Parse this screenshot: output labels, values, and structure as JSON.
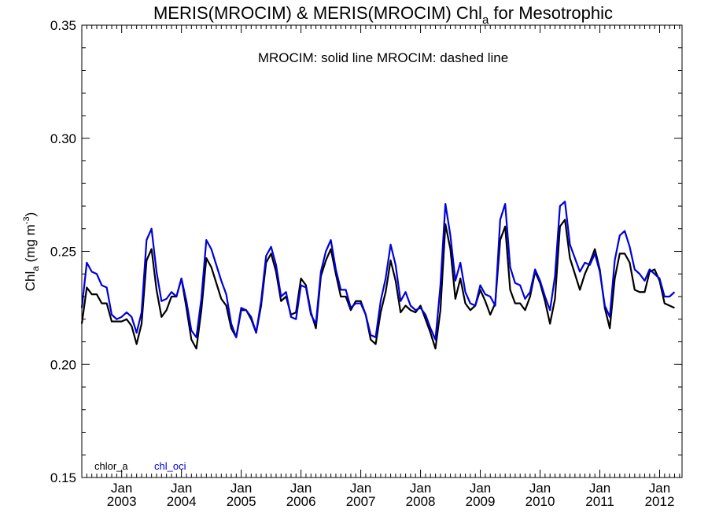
{
  "chart_data": {
    "type": "line",
    "title": {
      "main": "MERIS(MROCIM) & MERIS(MROCIM)  Chl",
      "main_sub": "a",
      "suffix": " for Mesotrophic"
    },
    "annotation": "MROCIM: solid line   MROCIM: dashed line",
    "ylabel": {
      "base": "Chl",
      "base_sub": "a",
      "unit": " (mg m",
      "unit_sup": "-3",
      "close": ")"
    },
    "ylim": [
      0.15,
      0.35
    ],
    "yticks": [
      0.15,
      0.2,
      0.25,
      0.3,
      0.35
    ],
    "ytick_labels": [
      "0.15",
      "0.20",
      "0.25",
      "0.30",
      "0.35"
    ],
    "xlim": [
      2002.333,
      2012.375
    ],
    "xticks": [
      {
        "x": 2003.0,
        "top": "Jan",
        "bottom": "2003"
      },
      {
        "x": 2004.0,
        "top": "Jan",
        "bottom": "2004"
      },
      {
        "x": 2005.0,
        "top": "Jan",
        "bottom": "2005"
      },
      {
        "x": 2006.0,
        "top": "Jan",
        "bottom": "2006"
      },
      {
        "x": 2007.0,
        "top": "Jan",
        "bottom": "2007"
      },
      {
        "x": 2008.0,
        "top": "Jan",
        "bottom": "2008"
      },
      {
        "x": 2009.0,
        "top": "Jan",
        "bottom": "2009"
      },
      {
        "x": 2010.0,
        "top": "Jan",
        "bottom": "2010"
      },
      {
        "x": 2011.0,
        "top": "Jan",
        "bottom": "2011"
      },
      {
        "x": 2012.0,
        "top": "Jan",
        "bottom": "2012"
      }
    ],
    "grid": false,
    "legend_position": "bottom-left",
    "series": [
      {
        "name": "chlor_a",
        "color": "#000000",
        "x_start": 2002.333,
        "x_step": 0.08333,
        "values": [
          0.218,
          0.234,
          0.231,
          0.231,
          0.227,
          0.227,
          0.219,
          0.219,
          0.219,
          0.22,
          0.217,
          0.209,
          0.218,
          0.246,
          0.251,
          0.233,
          0.221,
          0.224,
          0.23,
          0.23,
          0.238,
          0.225,
          0.211,
          0.207,
          0.224,
          0.247,
          0.243,
          0.236,
          0.229,
          0.226,
          0.216,
          0.212,
          0.224,
          0.224,
          0.22,
          0.214,
          0.226,
          0.245,
          0.249,
          0.241,
          0.228,
          0.23,
          0.222,
          0.223,
          0.238,
          0.235,
          0.223,
          0.216,
          0.239,
          0.246,
          0.251,
          0.24,
          0.23,
          0.23,
          0.224,
          0.228,
          0.228,
          0.222,
          0.211,
          0.209,
          0.223,
          0.232,
          0.246,
          0.237,
          0.223,
          0.226,
          0.224,
          0.223,
          0.226,
          0.22,
          0.214,
          0.207,
          0.224,
          0.262,
          0.251,
          0.229,
          0.238,
          0.227,
          0.224,
          0.226,
          0.233,
          0.228,
          0.222,
          0.227,
          0.255,
          0.261,
          0.233,
          0.227,
          0.227,
          0.224,
          0.23,
          0.241,
          0.236,
          0.228,
          0.218,
          0.229,
          0.261,
          0.264,
          0.247,
          0.24,
          0.233,
          0.24,
          0.245,
          0.251,
          0.242,
          0.225,
          0.216,
          0.238,
          0.249,
          0.249,
          0.245,
          0.233,
          0.232,
          0.232,
          0.241,
          0.242,
          0.237,
          0.227,
          0.226,
          0.225
        ]
      },
      {
        "name": "chl_oci",
        "color": "#0000dd",
        "x_start": 2002.333,
        "x_step": 0.08333,
        "values": [
          0.225,
          0.245,
          0.241,
          0.24,
          0.235,
          0.234,
          0.222,
          0.22,
          0.221,
          0.223,
          0.221,
          0.214,
          0.223,
          0.255,
          0.26,
          0.241,
          0.228,
          0.229,
          0.232,
          0.23,
          0.238,
          0.228,
          0.215,
          0.212,
          0.229,
          0.255,
          0.251,
          0.244,
          0.237,
          0.231,
          0.218,
          0.212,
          0.225,
          0.224,
          0.221,
          0.214,
          0.228,
          0.248,
          0.252,
          0.244,
          0.23,
          0.232,
          0.221,
          0.22,
          0.235,
          0.234,
          0.222,
          0.218,
          0.241,
          0.25,
          0.255,
          0.242,
          0.233,
          0.233,
          0.225,
          0.227,
          0.227,
          0.222,
          0.213,
          0.212,
          0.228,
          0.238,
          0.253,
          0.244,
          0.228,
          0.232,
          0.226,
          0.224,
          0.225,
          0.222,
          0.216,
          0.211,
          0.235,
          0.271,
          0.257,
          0.237,
          0.245,
          0.232,
          0.227,
          0.226,
          0.235,
          0.231,
          0.23,
          0.226,
          0.264,
          0.271,
          0.243,
          0.236,
          0.235,
          0.229,
          0.232,
          0.242,
          0.237,
          0.23,
          0.224,
          0.239,
          0.27,
          0.272,
          0.253,
          0.247,
          0.241,
          0.245,
          0.244,
          0.249,
          0.241,
          0.226,
          0.221,
          0.246,
          0.257,
          0.259,
          0.252,
          0.242,
          0.24,
          0.237,
          0.242,
          0.24,
          0.238,
          0.23,
          0.23,
          0.232
        ]
      }
    ]
  }
}
